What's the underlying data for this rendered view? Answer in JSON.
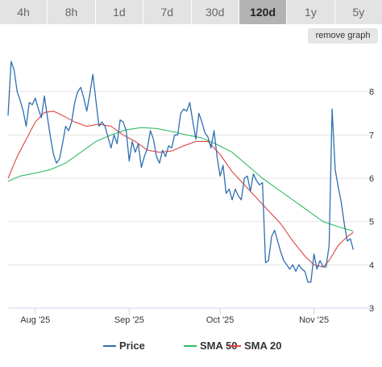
{
  "range_tabs": [
    {
      "label": "4h",
      "active": false
    },
    {
      "label": "8h",
      "active": false
    },
    {
      "label": "1d",
      "active": false
    },
    {
      "label": "7d",
      "active": false
    },
    {
      "label": "30d",
      "active": false
    },
    {
      "label": "120d",
      "active": true
    },
    {
      "label": "1y",
      "active": false
    },
    {
      "label": "5y",
      "active": false
    }
  ],
  "remove_graph_label": "remove graph",
  "chart_data": {
    "type": "line",
    "ylim": [
      3,
      9
    ],
    "yticks": [
      3,
      4,
      5,
      6,
      7,
      8
    ],
    "y_axis_position": "right",
    "grid": true,
    "legend_position": "bottom",
    "x_ticks": [
      {
        "label": "Aug '25",
        "date": "2025-08-01"
      },
      {
        "label": "Sep '25",
        "date": "2025-09-01"
      },
      {
        "label": "Oct '25",
        "date": "2025-10-01"
      },
      {
        "label": "Nov '25",
        "date": "2025-11-01"
      }
    ],
    "x_start": "2025-07-23",
    "x_end": "2025-11-20",
    "series": [
      {
        "name": "Price",
        "color": "#2f6fb0",
        "points": [
          [
            "2025-07-23",
            7.45
          ],
          [
            "2025-07-24",
            8.7
          ],
          [
            "2025-07-25",
            8.5
          ],
          [
            "2025-07-26",
            8.0
          ],
          [
            "2025-07-27",
            7.8
          ],
          [
            "2025-07-28",
            7.55
          ],
          [
            "2025-07-29",
            7.2
          ],
          [
            "2025-07-30",
            7.75
          ],
          [
            "2025-07-31",
            7.7
          ],
          [
            "2025-08-01",
            7.85
          ],
          [
            "2025-08-02",
            7.6
          ],
          [
            "2025-08-03",
            7.4
          ],
          [
            "2025-08-04",
            7.9
          ],
          [
            "2025-08-05",
            7.4
          ],
          [
            "2025-08-06",
            6.95
          ],
          [
            "2025-08-07",
            6.55
          ],
          [
            "2025-08-08",
            6.35
          ],
          [
            "2025-08-09",
            6.45
          ],
          [
            "2025-08-10",
            6.8
          ],
          [
            "2025-08-11",
            7.2
          ],
          [
            "2025-08-12",
            7.1
          ],
          [
            "2025-08-13",
            7.3
          ],
          [
            "2025-08-14",
            7.75
          ],
          [
            "2025-08-15",
            8.0
          ],
          [
            "2025-08-16",
            8.1
          ],
          [
            "2025-08-17",
            7.85
          ],
          [
            "2025-08-18",
            7.55
          ],
          [
            "2025-08-19",
            7.95
          ],
          [
            "2025-08-20",
            8.4
          ],
          [
            "2025-08-21",
            7.8
          ],
          [
            "2025-08-22",
            7.2
          ],
          [
            "2025-08-23",
            7.3
          ],
          [
            "2025-08-24",
            7.2
          ],
          [
            "2025-08-25",
            6.95
          ],
          [
            "2025-08-26",
            6.7
          ],
          [
            "2025-08-27",
            7.0
          ],
          [
            "2025-08-28",
            6.8
          ],
          [
            "2025-08-29",
            7.35
          ],
          [
            "2025-08-30",
            7.3
          ],
          [
            "2025-08-31",
            7.1
          ],
          [
            "2025-09-01",
            6.4
          ],
          [
            "2025-09-02",
            6.85
          ],
          [
            "2025-09-03",
            6.6
          ],
          [
            "2025-09-04",
            6.8
          ],
          [
            "2025-09-05",
            6.25
          ],
          [
            "2025-09-06",
            6.5
          ],
          [
            "2025-09-07",
            6.7
          ],
          [
            "2025-09-08",
            7.1
          ],
          [
            "2025-09-09",
            6.9
          ],
          [
            "2025-09-10",
            6.5
          ],
          [
            "2025-09-11",
            6.35
          ],
          [
            "2025-09-12",
            6.65
          ],
          [
            "2025-09-13",
            6.5
          ],
          [
            "2025-09-14",
            6.75
          ],
          [
            "2025-09-15",
            6.7
          ],
          [
            "2025-09-16",
            7.0
          ],
          [
            "2025-09-17",
            7.0
          ],
          [
            "2025-09-18",
            7.5
          ],
          [
            "2025-09-19",
            7.6
          ],
          [
            "2025-09-20",
            7.55
          ],
          [
            "2025-09-21",
            7.75
          ],
          [
            "2025-09-22",
            7.3
          ],
          [
            "2025-09-23",
            6.9
          ],
          [
            "2025-09-24",
            7.5
          ],
          [
            "2025-09-25",
            7.3
          ],
          [
            "2025-09-26",
            7.05
          ],
          [
            "2025-09-27",
            6.95
          ],
          [
            "2025-09-28",
            6.7
          ],
          [
            "2025-09-29",
            7.1
          ],
          [
            "2025-09-30",
            6.5
          ],
          [
            "2025-10-01",
            6.05
          ],
          [
            "2025-10-02",
            6.3
          ],
          [
            "2025-10-03",
            5.65
          ],
          [
            "2025-10-04",
            5.75
          ],
          [
            "2025-10-05",
            5.5
          ],
          [
            "2025-10-06",
            5.75
          ],
          [
            "2025-10-07",
            5.6
          ],
          [
            "2025-10-08",
            5.5
          ],
          [
            "2025-10-09",
            6.0
          ],
          [
            "2025-10-10",
            6.05
          ],
          [
            "2025-10-11",
            5.7
          ],
          [
            "2025-10-12",
            6.1
          ],
          [
            "2025-10-13",
            5.95
          ],
          [
            "2025-10-14",
            5.85
          ],
          [
            "2025-10-15",
            5.9
          ],
          [
            "2025-10-16",
            4.05
          ],
          [
            "2025-10-17",
            4.1
          ],
          [
            "2025-10-18",
            4.65
          ],
          [
            "2025-10-19",
            4.8
          ],
          [
            "2025-10-20",
            4.55
          ],
          [
            "2025-10-21",
            4.3
          ],
          [
            "2025-10-22",
            4.1
          ],
          [
            "2025-10-23",
            4.0
          ],
          [
            "2025-10-24",
            3.9
          ],
          [
            "2025-10-25",
            4.0
          ],
          [
            "2025-10-26",
            3.85
          ],
          [
            "2025-10-27",
            4.0
          ],
          [
            "2025-10-28",
            3.9
          ],
          [
            "2025-10-29",
            3.85
          ],
          [
            "2025-10-30",
            3.6
          ],
          [
            "2025-10-31",
            3.6
          ],
          [
            "2025-11-01",
            4.25
          ],
          [
            "2025-11-02",
            3.9
          ],
          [
            "2025-11-03",
            4.1
          ],
          [
            "2025-11-04",
            3.95
          ],
          [
            "2025-11-05",
            3.95
          ],
          [
            "2025-11-06",
            4.45
          ],
          [
            "2025-11-07",
            7.6
          ],
          [
            "2025-11-08",
            6.2
          ],
          [
            "2025-11-09",
            5.8
          ],
          [
            "2025-11-10",
            5.45
          ],
          [
            "2025-11-11",
            4.95
          ],
          [
            "2025-11-12",
            4.55
          ],
          [
            "2025-11-13",
            4.6
          ],
          [
            "2025-11-14",
            4.35
          ]
        ]
      },
      {
        "name": "SMA 50",
        "color": "#33bb66",
        "points": [
          [
            "2025-07-23",
            5.93
          ],
          [
            "2025-07-27",
            6.05
          ],
          [
            "2025-08-01",
            6.12
          ],
          [
            "2025-08-06",
            6.2
          ],
          [
            "2025-08-11",
            6.35
          ],
          [
            "2025-08-16",
            6.6
          ],
          [
            "2025-08-21",
            6.85
          ],
          [
            "2025-08-26",
            7.0
          ],
          [
            "2025-08-31",
            7.12
          ],
          [
            "2025-09-05",
            7.17
          ],
          [
            "2025-09-10",
            7.15
          ],
          [
            "2025-09-15",
            7.08
          ],
          [
            "2025-09-20",
            7.0
          ],
          [
            "2025-09-25",
            6.93
          ],
          [
            "2025-09-30",
            6.78
          ],
          [
            "2025-10-05",
            6.6
          ],
          [
            "2025-10-10",
            6.3
          ],
          [
            "2025-10-15",
            6.0
          ],
          [
            "2025-10-20",
            5.75
          ],
          [
            "2025-10-25",
            5.5
          ],
          [
            "2025-10-30",
            5.25
          ],
          [
            "2025-11-04",
            5.0
          ],
          [
            "2025-11-09",
            4.88
          ],
          [
            "2025-11-14",
            4.78
          ]
        ]
      },
      {
        "name": "SMA 20",
        "color": "#dd4444",
        "points": [
          [
            "2025-07-23",
            6.0
          ],
          [
            "2025-07-26",
            6.5
          ],
          [
            "2025-07-29",
            6.9
          ],
          [
            "2025-08-01",
            7.3
          ],
          [
            "2025-08-04",
            7.52
          ],
          [
            "2025-08-07",
            7.55
          ],
          [
            "2025-08-10",
            7.45
          ],
          [
            "2025-08-14",
            7.3
          ],
          [
            "2025-08-18",
            7.2
          ],
          [
            "2025-08-22",
            7.25
          ],
          [
            "2025-08-26",
            7.2
          ],
          [
            "2025-08-30",
            7.0
          ],
          [
            "2025-09-03",
            6.85
          ],
          [
            "2025-09-07",
            6.65
          ],
          [
            "2025-09-11",
            6.6
          ],
          [
            "2025-09-15",
            6.63
          ],
          [
            "2025-09-19",
            6.75
          ],
          [
            "2025-09-23",
            6.85
          ],
          [
            "2025-09-27",
            6.85
          ],
          [
            "2025-10-01",
            6.55
          ],
          [
            "2025-10-05",
            6.15
          ],
          [
            "2025-10-09",
            5.85
          ],
          [
            "2025-10-13",
            5.55
          ],
          [
            "2025-10-17",
            5.25
          ],
          [
            "2025-10-21",
            4.95
          ],
          [
            "2025-10-25",
            4.55
          ],
          [
            "2025-10-29",
            4.2
          ],
          [
            "2025-11-01",
            4.0
          ],
          [
            "2025-11-04",
            3.95
          ],
          [
            "2025-11-06",
            4.1
          ],
          [
            "2025-11-09",
            4.45
          ],
          [
            "2025-11-12",
            4.65
          ],
          [
            "2025-11-14",
            4.75
          ]
        ]
      }
    ]
  }
}
